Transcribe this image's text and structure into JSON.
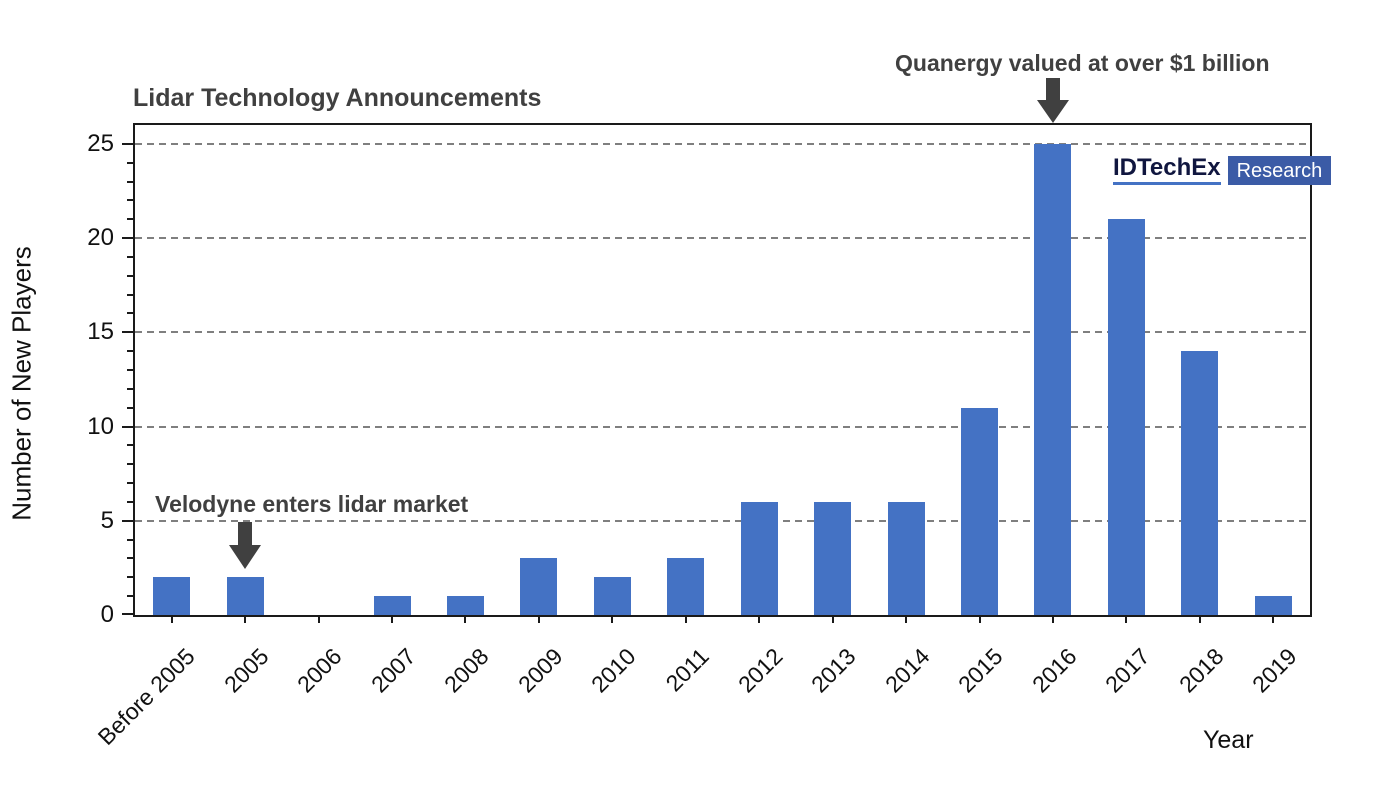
{
  "chart_data": {
    "type": "bar",
    "title": "Lidar Technology Announcements",
    "xlabel": "Year",
    "ylabel": "Number of New Players",
    "categories": [
      "Before 2005",
      "2005",
      "2006",
      "2007",
      "2008",
      "2009",
      "2010",
      "2011",
      "2012",
      "2013",
      "2014",
      "2015",
      "2016",
      "2017",
      "2018",
      "2019"
    ],
    "values": [
      2,
      2,
      0,
      1,
      1,
      3,
      2,
      3,
      6,
      6,
      6,
      11,
      25,
      21,
      14,
      1
    ],
    "ylim": [
      0,
      26
    ],
    "yticks": [
      0,
      5,
      10,
      15,
      20,
      25
    ],
    "minor_ytick_step": 1,
    "grid": "horizontal dashed gridlines at y-tick values above 0",
    "legend": "none",
    "bar_color": "#4472C4",
    "gridline_color": "#7f7f7f",
    "axis_color": "#1a1a1a",
    "annotation_color": "#404040",
    "annotations": [
      {
        "text": "Velodyne enters lidar market",
        "target_category": "2005",
        "arrow": "down"
      },
      {
        "text": "Quanergy valued at over $1 billion",
        "target_category": "2016",
        "arrow": "down"
      }
    ],
    "logo": {
      "brand": "IDTechEx",
      "suffix": "Research",
      "suffix_bg": "#3B5BA6",
      "underline_color": "#4472C4"
    }
  }
}
